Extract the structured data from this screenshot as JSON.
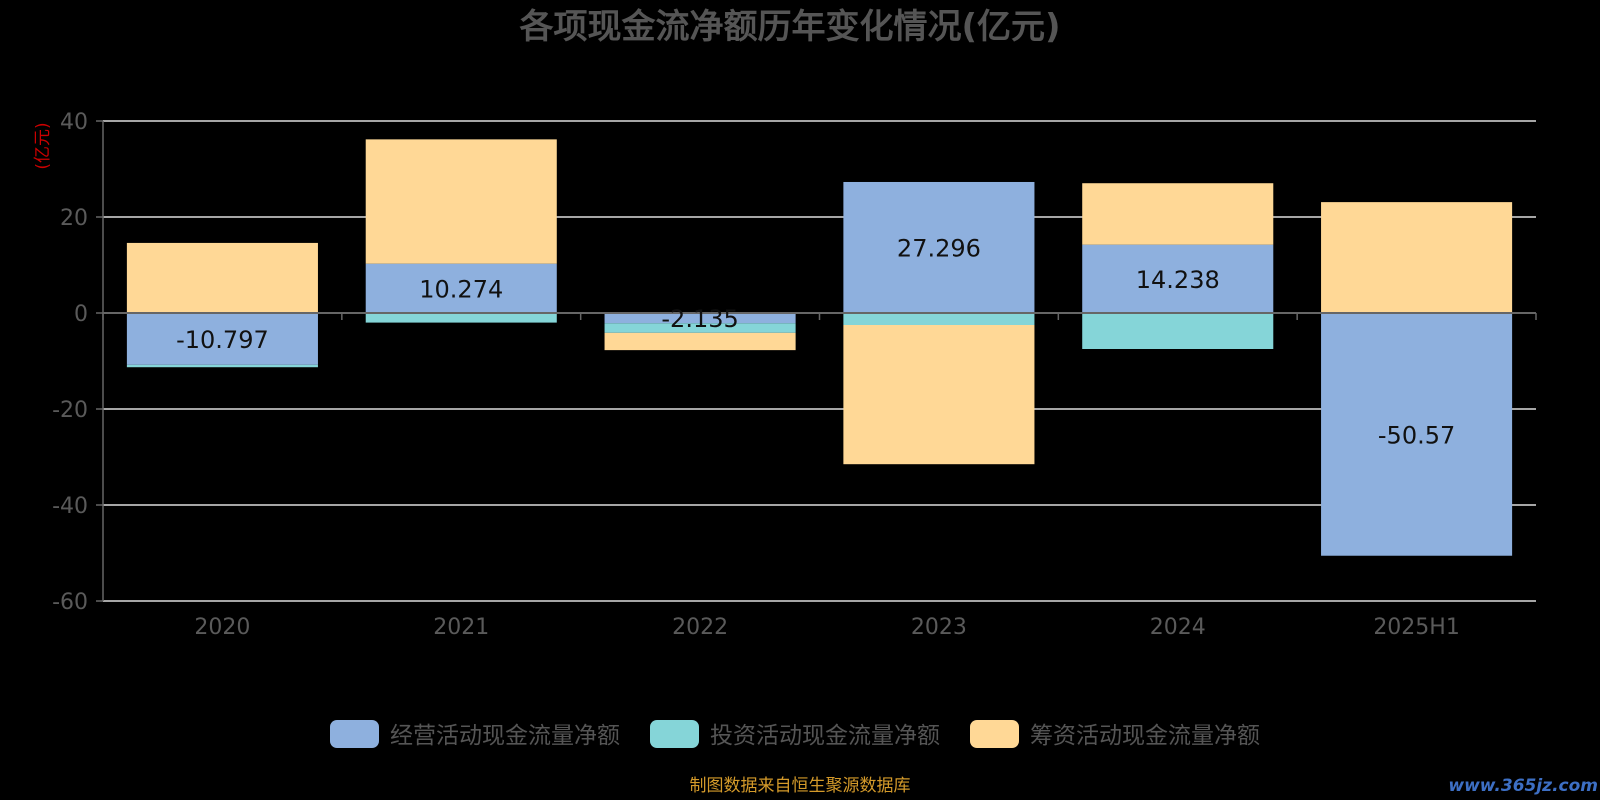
{
  "chart_data": {
    "type": "bar",
    "stacked": true,
    "title": "各项现金流净额历年变化情况(亿元)",
    "ylabel": "(亿元)",
    "xlabel": "",
    "categories": [
      "2020",
      "2021",
      "2022",
      "2023",
      "2024",
      "2025H1"
    ],
    "ylim": [
      -60,
      40
    ],
    "yticks": [
      40,
      20,
      0,
      -20,
      -40,
      -60
    ],
    "grid": true,
    "legend_position": "bottom",
    "series": [
      {
        "name": "经营活动现金流量净额",
        "color": "#8eb0de",
        "values": [
          -10.797,
          10.274,
          -2.135,
          27.296,
          14.238,
          -50.57
        ]
      },
      {
        "name": "投资活动现金流量净额",
        "color": "#85d5d8",
        "values": [
          -0.5,
          -2.0,
          -2.0,
          -2.5,
          -7.5,
          0
        ]
      },
      {
        "name": "筹资活动现金流量净额",
        "color": "#ffd896",
        "values": [
          14.6,
          25.9,
          -3.6,
          -29.0,
          12.8,
          23.1
        ]
      }
    ],
    "data_labels": [
      "-10.797",
      "10.274",
      "-2.135",
      "27.296",
      "14.238",
      "-50.57"
    ]
  },
  "source_note": "制图数据来自恒生聚源数据库",
  "watermark": "www.365jz.com"
}
